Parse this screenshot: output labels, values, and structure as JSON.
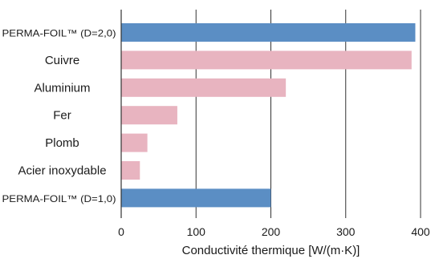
{
  "chart_data": {
    "type": "bar",
    "orientation": "horizontal",
    "categories": [
      "PERMA-FOIL™ (D=2,0)",
      "Cuivre",
      "Aluminium",
      "Fer",
      "Plomb",
      "Acier inoxydable",
      "PERMA-FOIL™ (D=1,0)"
    ],
    "values": [
      393,
      388,
      220,
      75,
      35,
      25,
      200
    ],
    "bar_colors": [
      "#5b8ec4",
      "#e8b4c0",
      "#e8b4c0",
      "#e8b4c0",
      "#e8b4c0",
      "#e8b4c0",
      "#5b8ec4"
    ],
    "xlabel": "Conductivité thermique [W/(m·K)]",
    "ylabel": "",
    "title": "",
    "xlim": [
      0,
      400
    ],
    "xticks": [
      0,
      100,
      200,
      300,
      400
    ],
    "xtick_labels": [
      "0",
      "100",
      "200",
      "300",
      "400"
    ],
    "grid": "vertical lines",
    "legend": "none"
  }
}
